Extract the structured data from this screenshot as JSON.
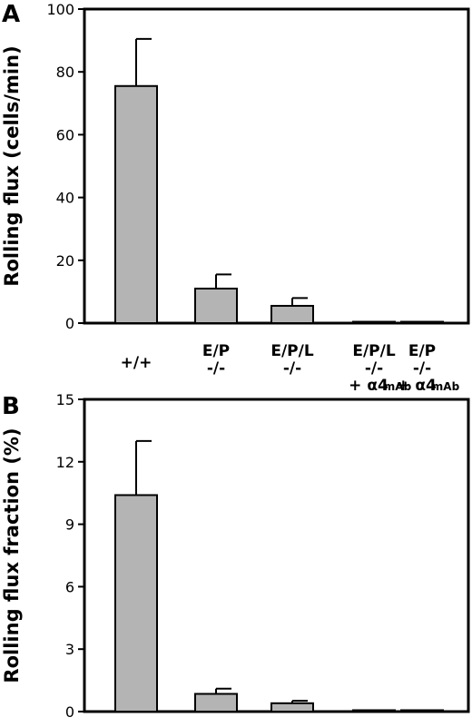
{
  "chart_data": [
    {
      "panel": "A",
      "type": "bar",
      "ylabel": "Rolling flux (cells/min)",
      "ylim": [
        0,
        100
      ],
      "yticks": [
        "0",
        "20",
        "40",
        "60",
        "80",
        "100"
      ],
      "categories": [
        {
          "line1": "+/+",
          "line2": "",
          "line3": "",
          "mab": ""
        },
        {
          "line1": "E/P",
          "line2": "-/-",
          "line3": "",
          "mab": ""
        },
        {
          "line1": "E/P/L",
          "line2": "-/-",
          "line3": "",
          "mab": ""
        },
        {
          "line1": "E/P/L",
          "line2": "-/-",
          "line3": "+ α4",
          "mab": "mAb"
        },
        {
          "line1": "E/P",
          "line2": "-/-",
          "line3": "+ α4",
          "mab": "mAb"
        }
      ],
      "values": [
        75.5,
        11,
        5.5,
        0.4,
        0.4
      ],
      "errors": [
        15,
        4.5,
        2.5,
        0,
        0
      ]
    },
    {
      "panel": "B",
      "type": "bar",
      "ylabel": "Rolling flux fraction (%)",
      "ylim": [
        0,
        15
      ],
      "yticks": [
        "0",
        "3",
        "6",
        "9",
        "12",
        "15"
      ],
      "values": [
        10.4,
        0.85,
        0.4,
        0.06,
        0.06
      ],
      "errors": [
        2.6,
        0.25,
        0.12,
        0,
        0
      ]
    }
  ]
}
